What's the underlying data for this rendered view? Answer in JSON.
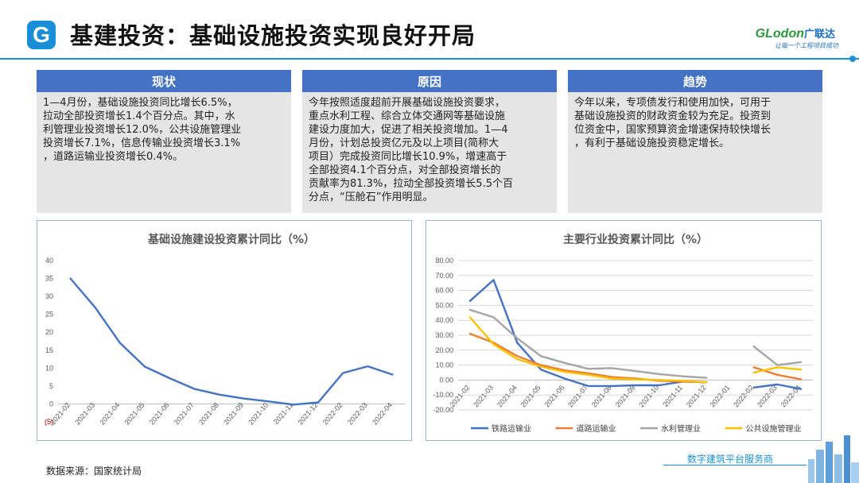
{
  "header": {
    "logo_letter": "G",
    "title": "基建投资：基础设施投资实现良好开局",
    "brand_en": "GLodon",
    "brand_cn": "广联达",
    "slogan": "让每一个工程项目成功"
  },
  "panels": [
    {
      "title": "现状",
      "lines": [
        "1—4月份，基础设施投资同比增长6.5%，",
        "拉动全部投资增长1.4个百分点。其中，水",
        "利管理业投资增长12.0%，公共设施管理业",
        "投资增长7.1%，信息传输业投资增长3.1%",
        "，道路运输业投资增长0.4%。"
      ]
    },
    {
      "title": "原因",
      "lines": [
        "今年按照适度超前开展基础设施投资要求，",
        "重点水利工程、综合立体交通网等基础设施",
        "建设力度加大，促进了相关投资增加。1—4",
        "月份，计划总投资亿元及以上项目(简称大",
        "项目）完成投资同比增长10.9%，增速高于",
        "全部投资4.1个百分点，对全部投资增长的",
        "贡献率为81.3%，拉动全部投资增长5.5个百",
        "分点，“压舱石”作用明显。"
      ]
    },
    {
      "title": "趋势",
      "lines": [
        "今年以来，专项债发行和使用加快，可用于",
        "基础设施投资的财政资金较为充足。投资到",
        "位资金中，国家预算资金增速保持较快增长",
        "，有利于基础设施投资稳定增长。"
      ]
    }
  ],
  "chart_data": [
    {
      "type": "line",
      "title": "基础设施建设投资累计同比（%）",
      "categories": [
        "2021-02",
        "2021-03",
        "2021-04",
        "2021-05",
        "2021-06",
        "2021-07",
        "2021-08",
        "2021-09",
        "2021-10",
        "2021-11",
        "2021-12",
        "2022-02",
        "2022-03",
        "2022-04"
      ],
      "y_ticks": [
        "40",
        "35",
        "30",
        "25",
        "20",
        "15",
        "10",
        "5",
        "0",
        "(5)"
      ],
      "ylim": [
        -5,
        40
      ],
      "series": [
        {
          "values": [
            35.0,
            26.9,
            17.0,
            10.4,
            7.2,
            4.2,
            2.6,
            1.5,
            0.7,
            -0.2,
            0.4,
            8.6,
            10.5,
            8.2
          ],
          "color": "#4472c4"
        }
      ]
    },
    {
      "type": "line",
      "title": "主要行业投资累计同比（%）",
      "categories": [
        "2021-02",
        "2021-03",
        "2021-04",
        "2021-05",
        "2021-06",
        "2021-07",
        "2021-08",
        "2021-09",
        "2021-10",
        "2021-11",
        "2021-12",
        "2022-01",
        "2022-02",
        "2022-03",
        "2022-04"
      ],
      "y_ticks": [
        "80.00",
        "70.00",
        "60.00",
        "50.00",
        "40.00",
        "30.00",
        "20.00",
        "10.00",
        "0.00",
        "-10.00",
        "-20.00"
      ],
      "ylim": [
        -20,
        80
      ],
      "legend_position": "bottom",
      "series": [
        {
          "name": "铁路运输业",
          "color": "#4472c4",
          "values": [
            53,
            67,
            25,
            7,
            1,
            -4,
            -4,
            -3.5,
            -3.5,
            -1,
            -1.5,
            null,
            -5,
            -3,
            -6
          ]
        },
        {
          "name": "道路运输业",
          "color": "#ed7d31",
          "values": [
            31,
            25,
            16,
            10,
            6.5,
            4.5,
            2,
            1,
            -0.5,
            -1,
            -1.5,
            null,
            8.5,
            3.5,
            0.5
          ]
        },
        {
          "name": "水利管理业",
          "color": "#a5a5a5",
          "values": [
            47,
            42,
            28,
            16,
            11.5,
            7.5,
            8,
            6,
            4,
            2.5,
            1.5,
            null,
            22.5,
            10,
            12
          ]
        },
        {
          "name": "公共设施管理业",
          "color": "#ffc000",
          "values": [
            42,
            24,
            14,
            9,
            5.5,
            3.5,
            1,
            0.5,
            0,
            -0.5,
            -1.5,
            null,
            5,
            8.5,
            7
          ]
        }
      ]
    }
  ],
  "source": "数据来源：国家统计局",
  "footer": {
    "service": "数字建筑平台服务商"
  }
}
